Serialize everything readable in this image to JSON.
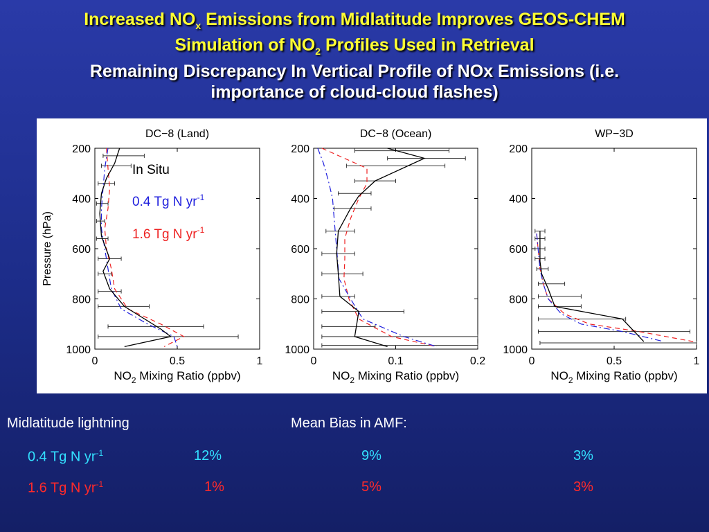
{
  "title": {
    "line1_a": "Increased NO",
    "line1_sub": "x",
    "line1_b": " Emissions from Midlatitude Improves GEOS-CHEM",
    "line2_a": "Simulation of NO",
    "line2_sub": "2",
    "line2_b": " Profiles Used in Retrieval",
    "line3": "Remaining Discrepancy In Vertical Profile of NOx Emissions    (i.e.",
    "line4": "importance of cloud-cloud flashes)"
  },
  "legend": {
    "insitu": "In Situ",
    "low_base": "0.4 Tg N yr",
    "low_sup": "-1",
    "high_base": "1.6 Tg N yr",
    "high_sup": "-1"
  },
  "colors": {
    "insitu": "#000000",
    "low": "#1f1fdd",
    "high": "#ee2222"
  },
  "chart_data": [
    {
      "type": "line",
      "title": "DC−8 (Land)",
      "xlabel_a": "NO",
      "xlabel_sub": "2",
      "xlabel_b": " Mixing Ratio (ppbv)",
      "ylabel": "Pressure (hPa)",
      "xlim": [
        0,
        1
      ],
      "ylim": [
        200,
        1000
      ],
      "xticks": [
        "0",
        "0.5",
        "1"
      ],
      "xtick_vals": [
        0,
        0.5,
        1
      ],
      "yticks": [
        "200",
        "400",
        "600",
        "800",
        "1000"
      ],
      "series": [
        {
          "key": "insitu",
          "x": [
            0.15,
            0.12,
            0.07,
            0.04,
            0.03,
            0.04,
            0.09,
            0.05,
            0.09,
            0.18,
            0.4,
            0.46,
            0.18
          ],
          "y": [
            200,
            260,
            320,
            380,
            460,
            550,
            640,
            690,
            760,
            830,
            920,
            950,
            990
          ]
        },
        {
          "key": "low",
          "x": [
            0.08,
            0.06,
            0.05,
            0.04,
            0.04,
            0.06,
            0.08,
            0.1,
            0.16,
            0.32,
            0.48,
            0.5
          ],
          "y": [
            200,
            280,
            360,
            440,
            520,
            600,
            680,
            760,
            840,
            900,
            950,
            990
          ]
        },
        {
          "key": "high",
          "x": [
            0.07,
            0.08,
            0.09,
            0.08,
            0.06,
            0.07,
            0.1,
            0.12,
            0.2,
            0.4,
            0.54,
            0.42
          ],
          "y": [
            200,
            280,
            360,
            440,
            520,
            600,
            680,
            760,
            840,
            900,
            950,
            990
          ]
        }
      ],
      "errorbars": [
        {
          "y": 230,
          "lo": 0.05,
          "hi": 0.3
        },
        {
          "y": 270,
          "lo": 0.04,
          "hi": 0.22
        },
        {
          "y": 340,
          "lo": 0.02,
          "hi": 0.12
        },
        {
          "y": 420,
          "lo": 0.01,
          "hi": 0.08
        },
        {
          "y": 490,
          "lo": 0.01,
          "hi": 0.06
        },
        {
          "y": 560,
          "lo": 0.01,
          "hi": 0.08
        },
        {
          "y": 640,
          "lo": 0.02,
          "hi": 0.16
        },
        {
          "y": 700,
          "lo": 0.02,
          "hi": 0.1
        },
        {
          "y": 770,
          "lo": 0.02,
          "hi": 0.16
        },
        {
          "y": 830,
          "lo": 0.02,
          "hi": 0.33
        },
        {
          "y": 910,
          "lo": 0.08,
          "hi": 0.66
        },
        {
          "y": 950,
          "lo": 0.02,
          "hi": 0.87
        }
      ]
    },
    {
      "type": "line",
      "title": "DC−8 (Ocean)",
      "xlabel_a": "NO",
      "xlabel_sub": "2",
      "xlabel_b": " Mixing Ratio (ppbv)",
      "ylabel": "",
      "xlim": [
        0,
        0.2
      ],
      "ylim": [
        200,
        1000
      ],
      "xticks": [
        "0",
        "0.1",
        "0.2"
      ],
      "xtick_vals": [
        0,
        0.1,
        0.2
      ],
      "yticks": [
        "200",
        "400",
        "600",
        "800",
        "1000"
      ],
      "series": [
        {
          "key": "insitu",
          "x": [
            0.09,
            0.135,
            0.075,
            0.055,
            0.045,
            0.03,
            0.028,
            0.03,
            0.032,
            0.055,
            0.05,
            0.09
          ],
          "y": [
            200,
            240,
            330,
            390,
            440,
            530,
            620,
            700,
            790,
            850,
            950,
            990
          ]
        },
        {
          "key": "low",
          "x": [
            0.005,
            0.012,
            0.018,
            0.023,
            0.025,
            0.027,
            0.029,
            0.031,
            0.045,
            0.06,
            0.11,
            0.15
          ],
          "y": [
            200,
            260,
            330,
            400,
            480,
            560,
            640,
            720,
            800,
            880,
            950,
            990
          ]
        },
        {
          "key": "high",
          "x": [
            0.01,
            0.065,
            0.065,
            0.055,
            0.045,
            0.038,
            0.038,
            0.037,
            0.043,
            0.055,
            0.095,
            0.15
          ],
          "y": [
            200,
            280,
            340,
            400,
            480,
            560,
            640,
            720,
            800,
            880,
            950,
            990
          ]
        }
      ],
      "errorbars": [
        {
          "y": 210,
          "lo": 0.05,
          "hi": 0.165
        },
        {
          "y": 240,
          "lo": 0.09,
          "hi": 0.185
        },
        {
          "y": 270,
          "lo": 0.04,
          "hi": 0.16
        },
        {
          "y": 330,
          "lo": 0.05,
          "hi": 0.1
        },
        {
          "y": 380,
          "lo": 0.03,
          "hi": 0.07
        },
        {
          "y": 440,
          "lo": 0.025,
          "hi": 0.07
        },
        {
          "y": 530,
          "lo": 0.015,
          "hi": 0.05
        },
        {
          "y": 620,
          "lo": 0.01,
          "hi": 0.05
        },
        {
          "y": 700,
          "lo": 0.01,
          "hi": 0.06
        },
        {
          "y": 790,
          "lo": 0.01,
          "hi": 0.05
        },
        {
          "y": 850,
          "lo": 0.01,
          "hi": 0.11
        },
        {
          "y": 910,
          "lo": 0.01,
          "hi": 0.075
        },
        {
          "y": 950,
          "lo": 0.01,
          "hi": 0.2
        },
        {
          "y": 985,
          "lo": 0.01,
          "hi": 0.2
        }
      ]
    },
    {
      "type": "line",
      "title": "WP−3D",
      "xlabel_a": "NO",
      "xlabel_sub": "2",
      "xlabel_b": " Mixing Ratio (ppbv)",
      "ylabel": "",
      "xlim": [
        0,
        1
      ],
      "ylim": [
        200,
        1000
      ],
      "xticks": [
        "0",
        "0.5",
        "1"
      ],
      "xtick_vals": [
        0,
        0.5,
        1
      ],
      "yticks": [
        "200",
        "400",
        "600",
        "800",
        "1000"
      ],
      "series": [
        {
          "key": "insitu",
          "x": [
            0.05,
            0.05,
            0.05,
            0.06,
            0.1,
            0.14,
            0.55,
            0.68
          ],
          "y": [
            530,
            600,
            650,
            700,
            760,
            830,
            880,
            970
          ]
        },
        {
          "key": "low",
          "x": [
            0.03,
            0.04,
            0.05,
            0.07,
            0.1,
            0.18,
            0.3,
            0.55,
            0.8
          ],
          "y": [
            540,
            610,
            680,
            740,
            800,
            860,
            900,
            930,
            970
          ]
        },
        {
          "key": "high",
          "x": [
            0.03,
            0.04,
            0.05,
            0.07,
            0.1,
            0.2,
            0.35,
            0.65,
            0.98
          ],
          "y": [
            540,
            610,
            680,
            740,
            800,
            860,
            900,
            930,
            970
          ]
        }
      ],
      "errorbars": [
        {
          "y": 530,
          "lo": 0.02,
          "hi": 0.08
        },
        {
          "y": 560,
          "lo": 0.02,
          "hi": 0.08
        },
        {
          "y": 600,
          "lo": 0.02,
          "hi": 0.08
        },
        {
          "y": 640,
          "lo": 0.02,
          "hi": 0.08
        },
        {
          "y": 680,
          "lo": 0.03,
          "hi": 0.1
        },
        {
          "y": 740,
          "lo": 0.04,
          "hi": 0.2
        },
        {
          "y": 790,
          "lo": 0.04,
          "hi": 0.3
        },
        {
          "y": 830,
          "lo": 0.04,
          "hi": 0.3
        },
        {
          "y": 880,
          "lo": 0.04,
          "hi": 0.57
        },
        {
          "y": 930,
          "lo": 0.04,
          "hi": 0.96
        },
        {
          "y": 975,
          "lo": 0.05,
          "hi": 1.0
        }
      ]
    }
  ],
  "bottom": {
    "heading_left": "Midlatitude lightning",
    "heading_right": "Mean Bias in AMF:",
    "rows": [
      {
        "label_base": "0.4 Tg N yr",
        "label_sup": "-1",
        "v1": "12%",
        "v2": "9%",
        "v3": "3%"
      },
      {
        "label_base": "1.6 Tg N yr",
        "label_sup": "-1",
        "v1": "1%",
        "v2": "5%",
        "v3": "3%"
      }
    ]
  }
}
